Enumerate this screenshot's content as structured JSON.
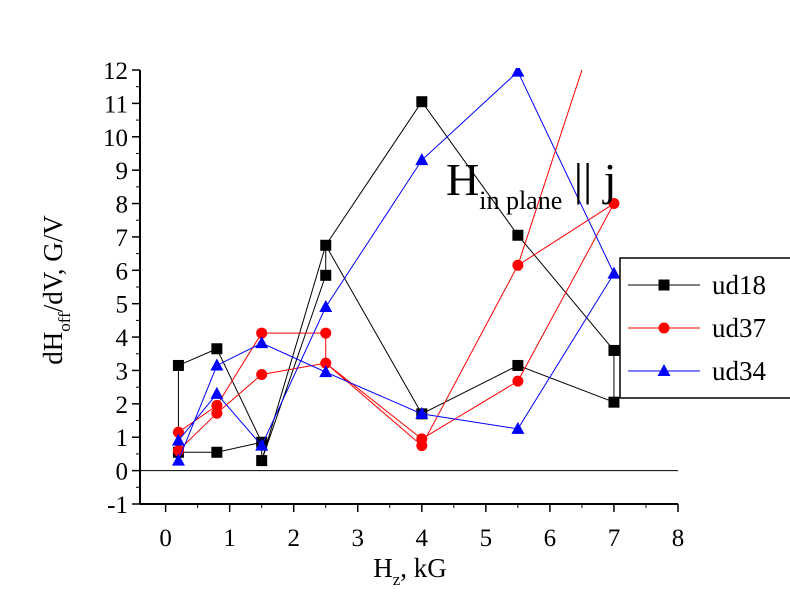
{
  "chart_data": {
    "type": "line",
    "x_axis": {
      "range": [
        -0.4,
        8
      ],
      "ticks": [
        0,
        1,
        2,
        3,
        4,
        5,
        6,
        7,
        8
      ],
      "tick_labels": [
        "0",
        "1",
        "2",
        "3",
        "4",
        "5",
        "6",
        "7",
        "8"
      ],
      "title_main": "H",
      "title_sub": "z",
      "title_rest": ", kG"
    },
    "y_axis": {
      "range": [
        -1,
        12
      ],
      "ticks": [
        -1,
        0,
        1,
        2,
        3,
        4,
        5,
        6,
        7,
        8,
        9,
        10,
        11,
        12
      ],
      "tick_labels": [
        "-1",
        "0",
        "1",
        "2",
        "3",
        "4",
        "5",
        "6",
        "7",
        "8",
        "9",
        "10",
        "11",
        "12"
      ],
      "title_main": "dH",
      "title_sub": "off",
      "title_rest": "/dV, G/V"
    },
    "annotation": {
      "main": "H",
      "sub": "in plane",
      "rest": " || j"
    },
    "legend_position": "right",
    "zero_line": true,
    "series": [
      {
        "name": "ud18",
        "color": "#000000",
        "marker": "square",
        "x": [
          0.2,
          0.2,
          0.8,
          1.5,
          1.5,
          2.5,
          2.5,
          4.0,
          5.5,
          7.0,
          7.0,
          5.5,
          4.0,
          2.5,
          1.5,
          1.5,
          0.8,
          0.2
        ],
        "y": [
          0.55,
          3.15,
          3.65,
          0.85,
          0.3,
          5.85,
          6.75,
          11.05,
          7.05,
          3.6,
          2.05,
          3.15,
          1.7,
          6.75,
          0.3,
          0.85,
          0.55,
          0.55
        ]
      },
      {
        "name": "ud37",
        "color": "#ff0000",
        "marker": "circle",
        "x": [
          0.2,
          0.8,
          1.5,
          2.5,
          2.5,
          4.0,
          5.5,
          7.0,
          7.0,
          5.5,
          4.0,
          2.5,
          1.5,
          0.8,
          0.2
        ],
        "y": [
          1.15,
          1.95,
          4.12,
          4.12,
          3.22,
          0.95,
          2.68,
          8.0,
          8.0,
          6.15,
          0.75,
          3.22,
          2.88,
          1.72,
          0.6
        ]
      },
      {
        "name": "ud34",
        "color": "#0000ff",
        "marker": "triangle",
        "x": [
          0.2,
          0.8,
          1.5,
          2.5,
          2.5,
          4.0,
          5.5,
          7.0,
          7.0,
          5.5,
          4.0,
          2.5,
          1.5,
          0.8,
          0.2
        ],
        "y": [
          0.3,
          3.15,
          3.82,
          2.95,
          2.95,
          1.7,
          1.25,
          5.9,
          5.9,
          11.95,
          9.3,
          4.9,
          0.75,
          2.3,
          0.9
        ]
      }
    ],
    "extra_segments": [
      {
        "series": "ud37",
        "from": [
          5.5,
          6.15
        ],
        "to": [
          6.5,
          12.0
        ]
      }
    ]
  }
}
